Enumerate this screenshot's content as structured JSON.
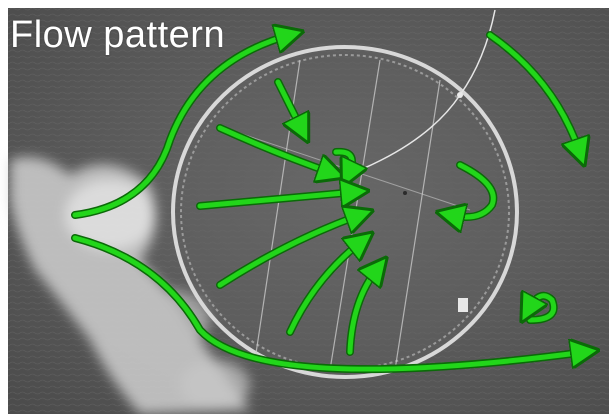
{
  "title": "Flow pattern",
  "colors": {
    "arrow": "#22d61a",
    "arrow_outline": "#0b6a08",
    "water": "#5b5b5b",
    "foam": "#cfcfcf",
    "pen_ring": "#d8d8d8"
  },
  "icons": [
    "arrow-icon"
  ]
}
